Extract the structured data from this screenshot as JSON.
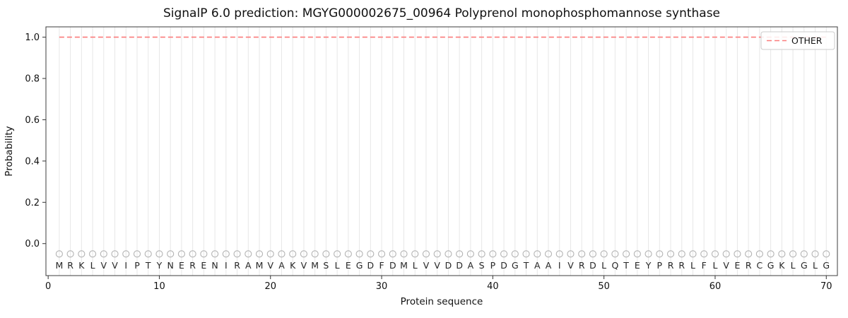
{
  "page": {
    "title": "SignalP 6.0 prediction: MGYG000002675_00964 Polyprenol monophosphomannose synthase"
  },
  "chart_data": {
    "type": "line",
    "title": "SignalP 6.0 prediction: MGYG000002675_00964 Polyprenol monophosphomannose synthase",
    "xlabel": "Protein sequence",
    "ylabel": "Probability",
    "xlim": [
      -0.2,
      71
    ],
    "ylim": [
      -0.155,
      1.05
    ],
    "xticks": [
      "0",
      "10",
      "20",
      "30",
      "40",
      "50",
      "60",
      "70"
    ],
    "yticks": [
      "0.0",
      "0.2",
      "0.4",
      "0.6",
      "0.8",
      "1.0"
    ],
    "grid": {
      "vertical_per_residue": true,
      "horizontal": false,
      "color": "#e7e7e7"
    },
    "legend": {
      "position": "upper right",
      "entries": [
        {
          "label": "OTHER",
          "style": "dashed",
          "color": "#fb7b7b"
        }
      ]
    },
    "sequence": "MRKLVVIPTYNERENIRAMVAKVMSLEGDFDMLVVDDASPDGTAAIVRDLQTEYPRRLFLVERCGKLGLG",
    "series": [
      {
        "name": "OTHER",
        "style": "dashed",
        "color": "#fb7b7b",
        "x_range": [
          1,
          70
        ],
        "constant_y": 1.0
      }
    ],
    "marker_row": {
      "y": -0.05,
      "shape": "open-circle",
      "color": "#b3b3b3"
    },
    "letter_row": {
      "y": -0.12,
      "color": "#262626"
    }
  }
}
